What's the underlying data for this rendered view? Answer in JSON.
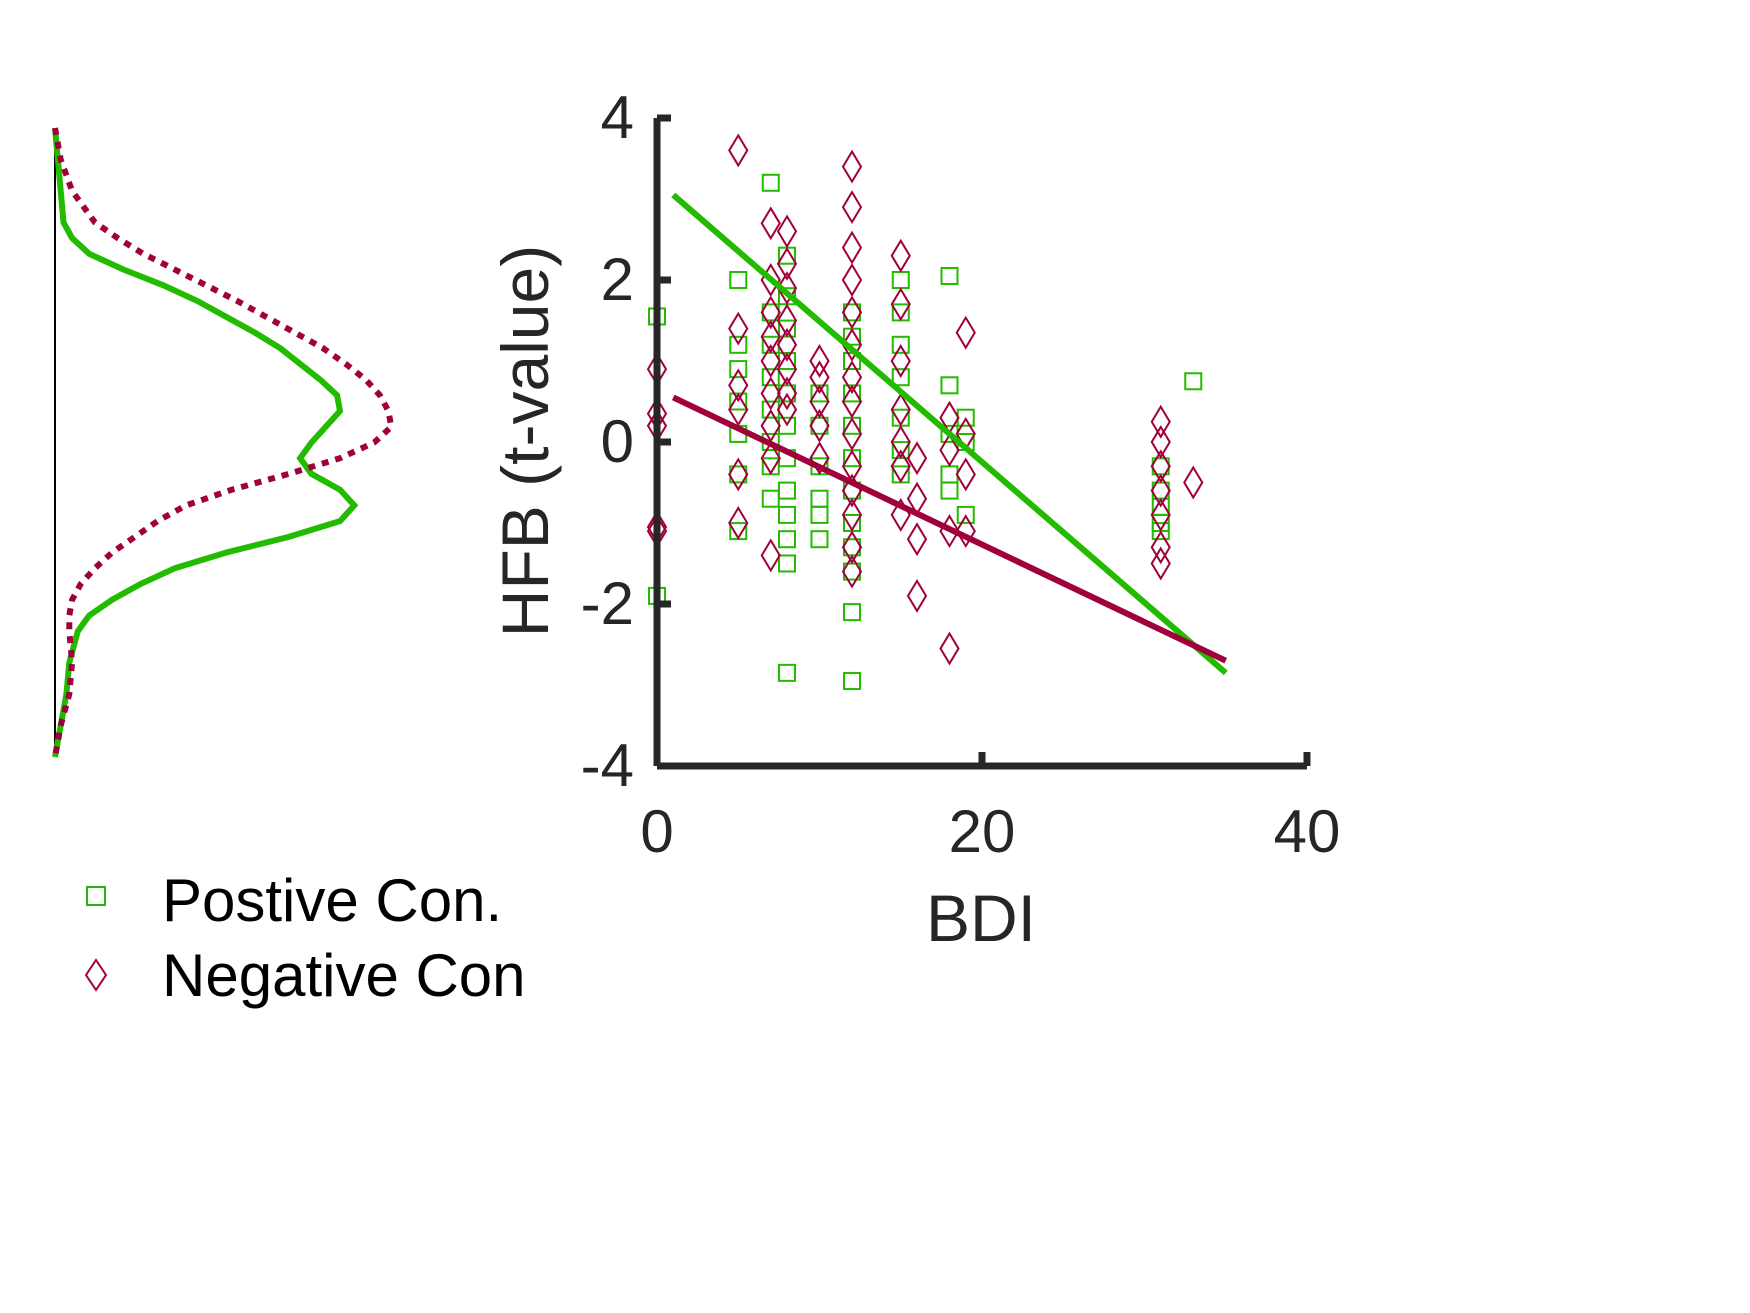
{
  "colors": {
    "positive": "#22bb00",
    "negative": "#a0003c",
    "axis": "#262626",
    "background": "#ffffff"
  },
  "chart_data": {
    "type": "scatter",
    "xlabel": "BDI",
    "ylabel": "HFB  (t-value)",
    "xlim": [
      0,
      40
    ],
    "ylim": [
      -4,
      4
    ],
    "xticks": [
      0,
      20,
      40
    ],
    "yticks": [
      4,
      2,
      0,
      -2,
      -4
    ],
    "xtick_labels": [
      "0",
      "20",
      "40"
    ],
    "ytick_labels": [
      "4",
      "2",
      "0",
      "-2",
      "-4"
    ],
    "grid": false,
    "legend": {
      "position": "bottom-left",
      "entries": [
        {
          "label": "Postive Con.",
          "marker": "square",
          "series": "positive"
        },
        {
          "label": "Negative Con",
          "marker": "diamond",
          "series": "negative"
        }
      ]
    },
    "series": [
      {
        "name": "Postive Con.",
        "marker": "square",
        "fit_line": {
          "x": [
            1,
            35
          ],
          "y": [
            3.05,
            -2.85
          ]
        },
        "points": [
          [
            0,
            1.55
          ],
          [
            0,
            -1.9
          ],
          [
            5,
            2.0
          ],
          [
            5,
            1.2
          ],
          [
            5,
            0.9
          ],
          [
            5,
            0.5
          ],
          [
            5,
            0.1
          ],
          [
            5,
            -0.4
          ],
          [
            5,
            -1.1
          ],
          [
            7,
            1.6
          ],
          [
            7,
            1.2
          ],
          [
            7,
            0.8
          ],
          [
            7,
            0.4
          ],
          [
            7,
            0.0
          ],
          [
            7,
            -0.3
          ],
          [
            7,
            -0.7
          ],
          [
            7,
            3.2
          ],
          [
            8,
            2.3
          ],
          [
            8,
            1.8
          ],
          [
            8,
            1.4
          ],
          [
            8,
            1.0
          ],
          [
            8,
            0.6
          ],
          [
            8,
            0.2
          ],
          [
            8,
            -0.2
          ],
          [
            8,
            -0.6
          ],
          [
            8,
            -0.9
          ],
          [
            8,
            -1.2
          ],
          [
            8,
            -1.5
          ],
          [
            8,
            -2.85
          ],
          [
            10,
            0.6
          ],
          [
            10,
            0.2
          ],
          [
            10,
            -0.3
          ],
          [
            10,
            -0.7
          ],
          [
            10,
            -0.9
          ],
          [
            10,
            -1.2
          ],
          [
            12,
            1.6
          ],
          [
            12,
            1.3
          ],
          [
            12,
            1.0
          ],
          [
            12,
            0.6
          ],
          [
            12,
            0.2
          ],
          [
            12,
            -0.2
          ],
          [
            12,
            -0.6
          ],
          [
            12,
            -1.0
          ],
          [
            12,
            -1.3
          ],
          [
            12,
            -1.6
          ],
          [
            12,
            -2.1
          ],
          [
            12,
            -2.95
          ],
          [
            15,
            2.0
          ],
          [
            15,
            1.6
          ],
          [
            15,
            1.2
          ],
          [
            15,
            0.8
          ],
          [
            15,
            0.3
          ],
          [
            15,
            -0.1
          ],
          [
            15,
            -0.4
          ],
          [
            18,
            2.05
          ],
          [
            18,
            0.7
          ],
          [
            18,
            0.1
          ],
          [
            18,
            -0.4
          ],
          [
            18,
            -0.6
          ],
          [
            19,
            0.3
          ],
          [
            19,
            0.0
          ],
          [
            19,
            -0.9
          ],
          [
            31,
            -0.3
          ],
          [
            31,
            -0.6
          ],
          [
            31,
            -0.8
          ],
          [
            31,
            -1.0
          ],
          [
            31,
            -1.1
          ],
          [
            33,
            0.75
          ]
        ]
      },
      {
        "name": "Negative Con",
        "marker": "diamond",
        "fit_line": {
          "x": [
            1,
            35
          ],
          "y": [
            0.55,
            -2.7
          ]
        },
        "points": [
          [
            0,
            0.9
          ],
          [
            0,
            0.35
          ],
          [
            0,
            0.2
          ],
          [
            0,
            -1.05
          ],
          [
            0,
            -1.1
          ],
          [
            5,
            3.6
          ],
          [
            5,
            1.4
          ],
          [
            5,
            0.7
          ],
          [
            5,
            0.4
          ],
          [
            5,
            -0.4
          ],
          [
            5,
            -1.0
          ],
          [
            7,
            2.7
          ],
          [
            7,
            2.0
          ],
          [
            7,
            1.6
          ],
          [
            7,
            1.3
          ],
          [
            7,
            1.0
          ],
          [
            7,
            0.6
          ],
          [
            7,
            0.2
          ],
          [
            7,
            -0.2
          ],
          [
            7,
            -1.4
          ],
          [
            8,
            2.6
          ],
          [
            8,
            2.2
          ],
          [
            8,
            1.9
          ],
          [
            8,
            1.5
          ],
          [
            8,
            1.2
          ],
          [
            8,
            0.9
          ],
          [
            8,
            0.6
          ],
          [
            8,
            0.4
          ],
          [
            10,
            1.0
          ],
          [
            10,
            0.8
          ],
          [
            10,
            0.5
          ],
          [
            10,
            0.2
          ],
          [
            10,
            -0.2
          ],
          [
            12,
            3.4
          ],
          [
            12,
            2.9
          ],
          [
            12,
            2.4
          ],
          [
            12,
            2.0
          ],
          [
            12,
            1.6
          ],
          [
            12,
            1.2
          ],
          [
            12,
            0.8
          ],
          [
            12,
            0.5
          ],
          [
            12,
            0.1
          ],
          [
            12,
            -0.3
          ],
          [
            12,
            -0.6
          ],
          [
            12,
            -0.9
          ],
          [
            12,
            -1.3
          ],
          [
            12,
            -1.6
          ],
          [
            15,
            2.3
          ],
          [
            15,
            1.7
          ],
          [
            15,
            1.0
          ],
          [
            15,
            0.4
          ],
          [
            15,
            0.0
          ],
          [
            15,
            -0.3
          ],
          [
            15,
            -0.9
          ],
          [
            16,
            -0.2
          ],
          [
            16,
            -0.7
          ],
          [
            16,
            -1.2
          ],
          [
            16,
            -1.9
          ],
          [
            18,
            0.3
          ],
          [
            18,
            -0.1
          ],
          [
            18,
            -1.1
          ],
          [
            18,
            -2.55
          ],
          [
            19,
            1.35
          ],
          [
            19,
            0.1
          ],
          [
            19,
            -0.4
          ],
          [
            19,
            -1.1
          ],
          [
            31,
            0.25
          ],
          [
            31,
            0.0
          ],
          [
            31,
            -0.3
          ],
          [
            31,
            -0.6
          ],
          [
            31,
            -0.9
          ],
          [
            31,
            -1.3
          ],
          [
            31,
            -1.5
          ],
          [
            33,
            -0.5
          ]
        ]
      }
    ],
    "marginal_density": {
      "orientation": "vertical",
      "shared_axis": "y",
      "series": [
        {
          "name": "Postive Con.",
          "line_style": "solid",
          "y": [
            4.0,
            3.6,
            3.2,
            2.8,
            2.6,
            2.4,
            2.2,
            2.0,
            1.8,
            1.6,
            1.4,
            1.2,
            1.0,
            0.8,
            0.6,
            0.4,
            0.2,
            0.0,
            -0.2,
            -0.4,
            -0.6,
            -0.8,
            -1.0,
            -1.2,
            -1.4,
            -1.6,
            -1.8,
            -2.0,
            -2.2,
            -2.4,
            -2.8,
            -3.2,
            -3.6,
            -4.0
          ],
          "density": [
            0.0,
            0.01,
            0.02,
            0.03,
            0.06,
            0.12,
            0.24,
            0.38,
            0.5,
            0.6,
            0.7,
            0.79,
            0.86,
            0.93,
            0.99,
            1.0,
            0.95,
            0.9,
            0.86,
            0.9,
            1.0,
            1.05,
            1.0,
            0.82,
            0.6,
            0.42,
            0.3,
            0.2,
            0.12,
            0.08,
            0.05,
            0.04,
            0.02,
            0.0
          ]
        },
        {
          "name": "Negative Con",
          "line_style": "dotted",
          "y": [
            4.0,
            3.6,
            3.2,
            2.8,
            2.6,
            2.4,
            2.2,
            2.0,
            1.8,
            1.6,
            1.4,
            1.2,
            1.0,
            0.8,
            0.6,
            0.4,
            0.2,
            0.0,
            -0.2,
            -0.4,
            -0.6,
            -0.8,
            -1.0,
            -1.2,
            -1.4,
            -1.6,
            -1.8,
            -2.0,
            -2.2,
            -2.4,
            -2.8,
            -3.2,
            -3.6,
            -4.0
          ],
          "density": [
            0.0,
            0.02,
            0.06,
            0.14,
            0.22,
            0.31,
            0.42,
            0.53,
            0.64,
            0.74,
            0.84,
            0.94,
            1.02,
            1.09,
            1.14,
            1.17,
            1.18,
            1.12,
            1.0,
            0.82,
            0.62,
            0.46,
            0.36,
            0.28,
            0.2,
            0.14,
            0.09,
            0.06,
            0.05,
            0.05,
            0.06,
            0.05,
            0.02,
            0.0
          ]
        }
      ]
    }
  }
}
